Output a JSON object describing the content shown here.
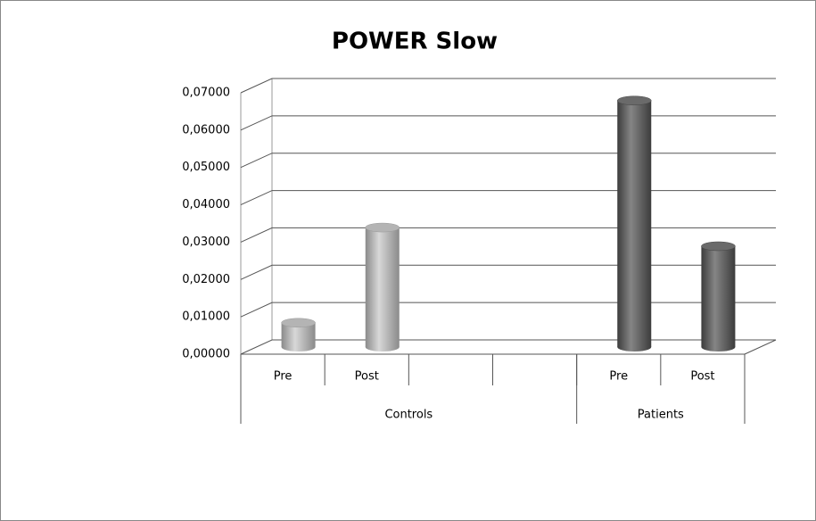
{
  "chart_data": {
    "type": "bar",
    "title": "POWER Slow",
    "categories": [
      "Pre",
      "Post",
      null,
      null,
      "Pre",
      "Post"
    ],
    "values": [
      0.0065,
      0.032,
      null,
      null,
      0.066,
      0.027
    ],
    "colors": [
      "#b4b4b4",
      "#b4b4b4",
      null,
      null,
      "#6a6a6a",
      "#6a6a6a"
    ],
    "groups": [
      {
        "label": "Controls",
        "count": 4
      },
      {
        "label": "Patients",
        "count": 2
      }
    ],
    "ylim": [
      0,
      0.07
    ],
    "yticks": [
      {
        "value": 0,
        "label": "0,00000"
      },
      {
        "value": 0.01,
        "label": "0,01000"
      },
      {
        "value": 0.02,
        "label": "0,02000"
      },
      {
        "value": 0.03,
        "label": "0,03000"
      },
      {
        "value": 0.04,
        "label": "0,04000"
      },
      {
        "value": 0.05,
        "label": "0,05000"
      },
      {
        "value": 0.06,
        "label": "0,06000"
      },
      {
        "value": 0.07,
        "label": "0,07000"
      }
    ],
    "grid": true
  }
}
